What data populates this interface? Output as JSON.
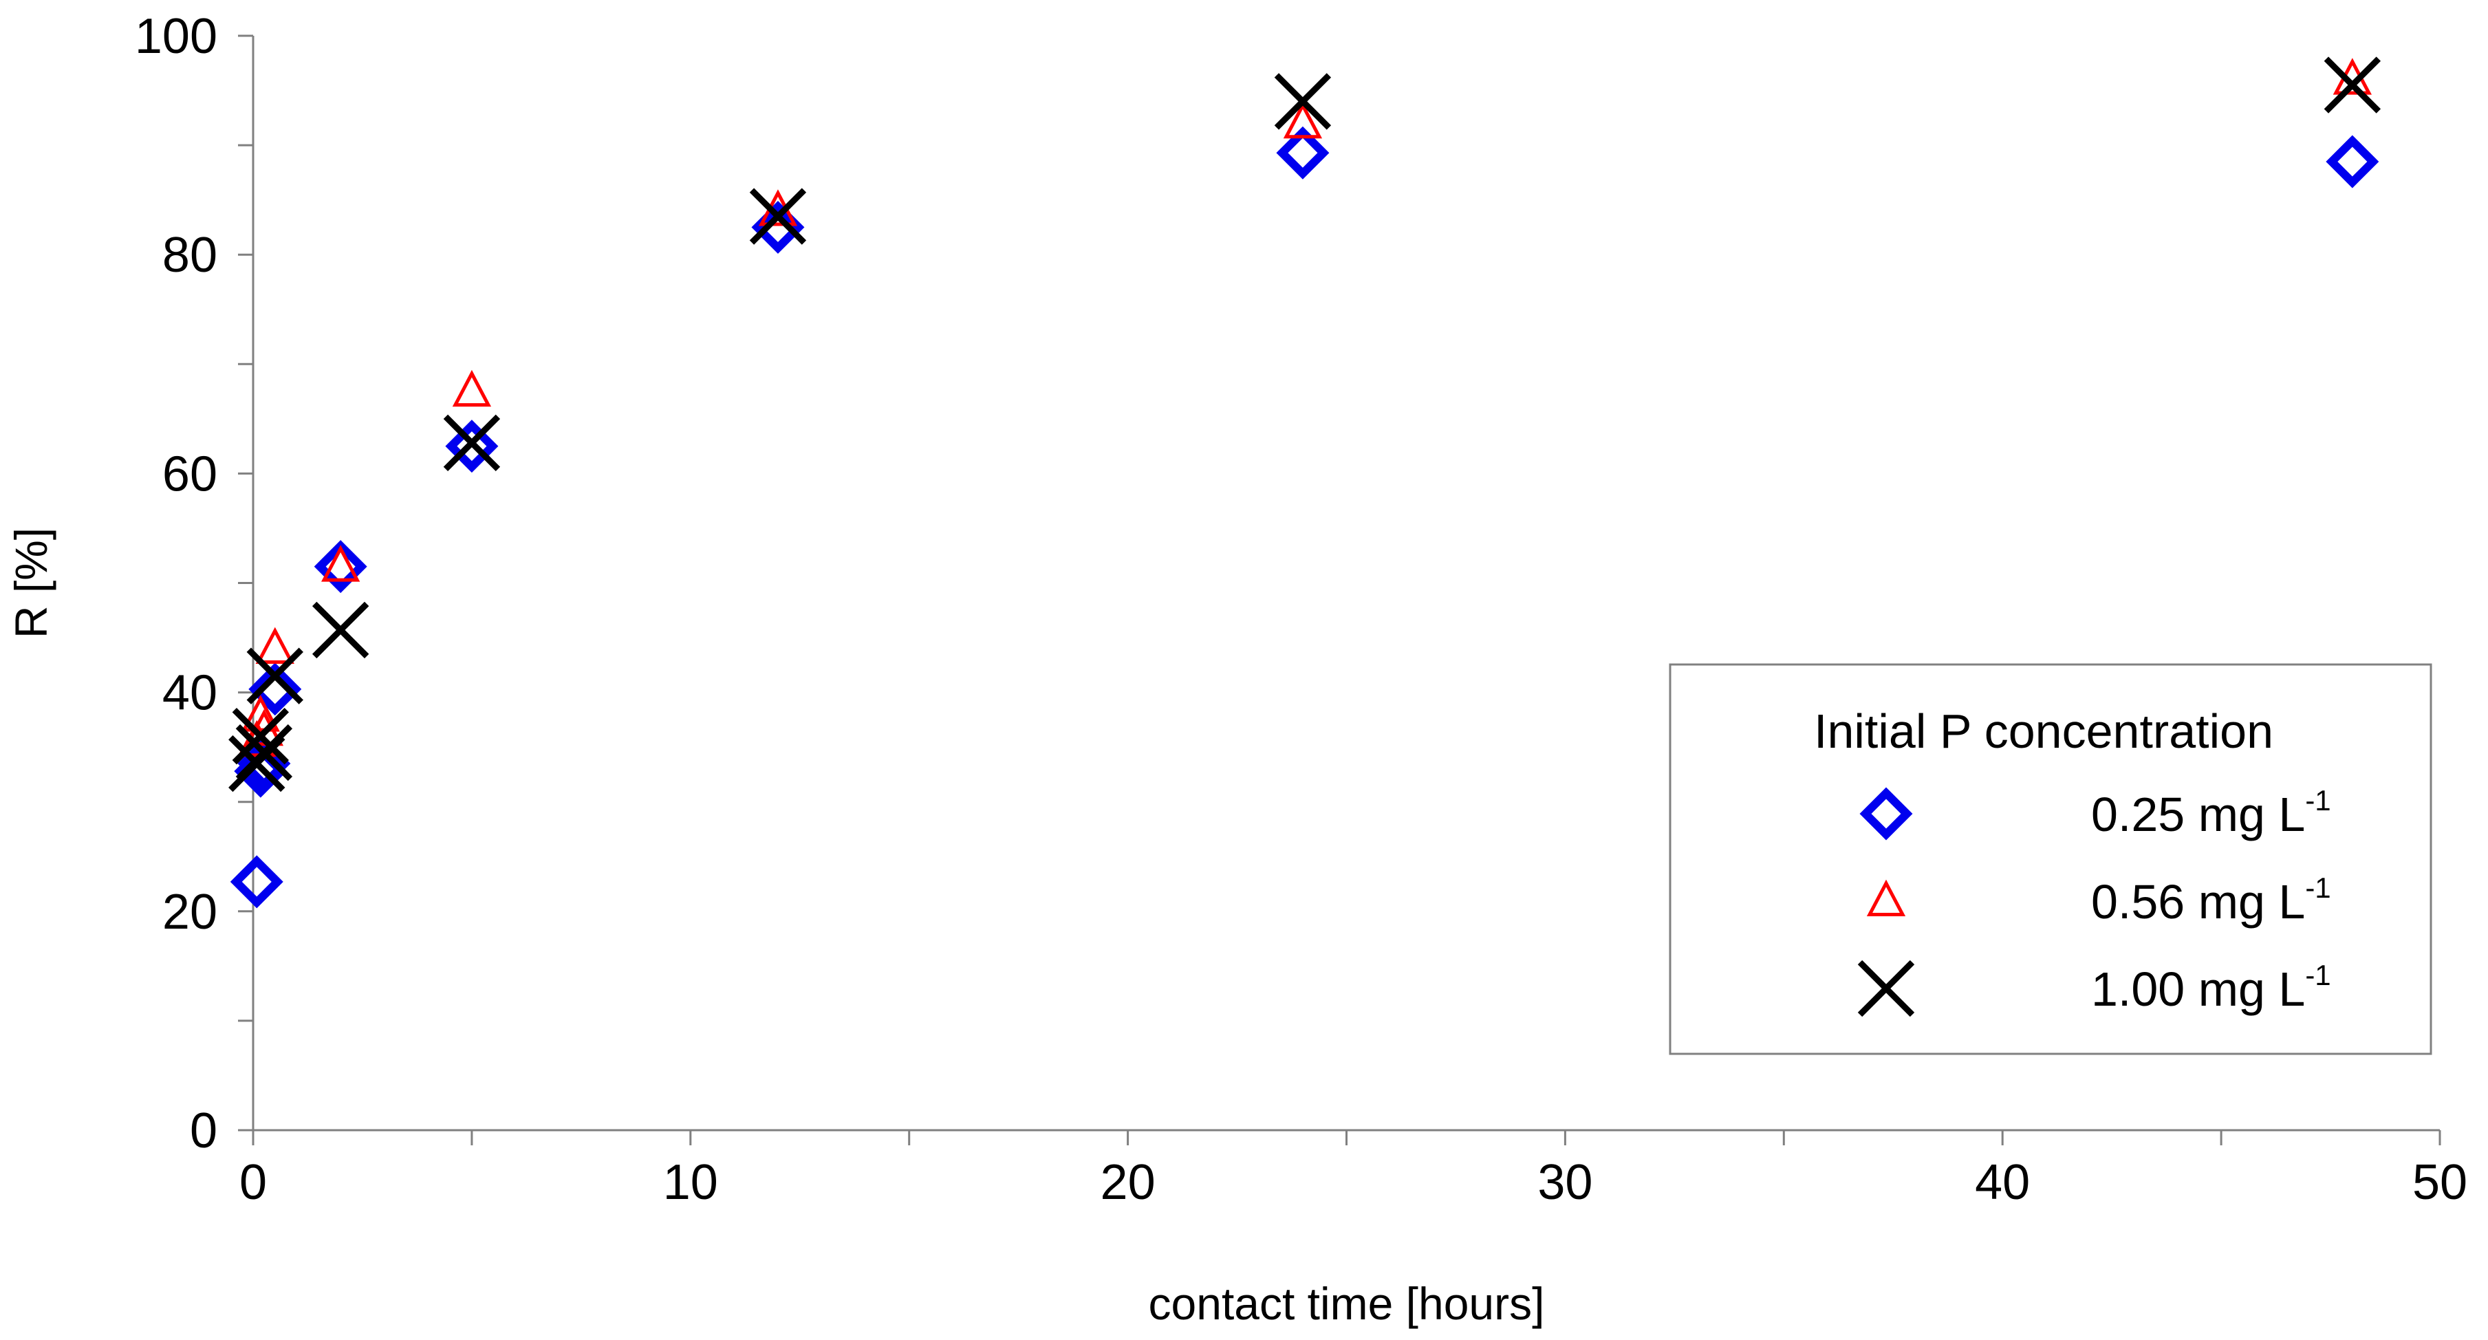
{
  "chart_data": {
    "type": "scatter",
    "title": "",
    "xlabel": "contact time [hours]",
    "ylabel": "R [%]",
    "xlim": [
      0,
      50
    ],
    "ylim": [
      0,
      100
    ],
    "x_ticks": [
      "0",
      "10",
      "20",
      "30",
      "40",
      "50"
    ],
    "y_ticks": [
      "0",
      "20",
      "40",
      "60",
      "80",
      "100"
    ],
    "grid": false,
    "legend": {
      "title": "Initial P concentration",
      "position": "right",
      "entries": [
        {
          "label": "0.25 mg L",
          "sup": "-1"
        },
        {
          "label": "0.56 mg L",
          "sup": "-1"
        },
        {
          "label": "1.00 mg L",
          "sup": "-1"
        }
      ]
    },
    "series": [
      {
        "name": "0.25 mg L-1",
        "marker": "diamond",
        "color": "#0000ee",
        "points": [
          [
            0.083,
            22.7
          ],
          [
            0.17,
            32.8
          ],
          [
            0.25,
            33.5
          ],
          [
            0.5,
            40.3
          ],
          [
            2,
            51.5
          ],
          [
            5,
            62.5
          ],
          [
            12,
            82.5
          ],
          [
            24,
            89.3
          ],
          [
            48,
            88.5
          ]
        ]
      },
      {
        "name": "0.56 mg L-1",
        "marker": "triangle",
        "color": "#ff0000",
        "points": [
          [
            0.083,
            35.5
          ],
          [
            0.17,
            37.8
          ],
          [
            0.25,
            36.5
          ],
          [
            0.5,
            44.0
          ],
          [
            2,
            51.5
          ],
          [
            5,
            67.5
          ],
          [
            12,
            84.0
          ],
          [
            24,
            92.0
          ],
          [
            48,
            96.0
          ]
        ]
      },
      {
        "name": "1.00 mg L-1",
        "marker": "x",
        "color": "#000000",
        "points": [
          [
            0.083,
            33.5
          ],
          [
            0.17,
            36.0
          ],
          [
            0.25,
            34.5
          ],
          [
            0.5,
            41.5
          ],
          [
            2,
            45.7
          ],
          [
            5,
            62.8
          ],
          [
            12,
            83.5
          ],
          [
            24,
            94.0
          ],
          [
            48,
            95.5
          ]
        ]
      }
    ]
  }
}
